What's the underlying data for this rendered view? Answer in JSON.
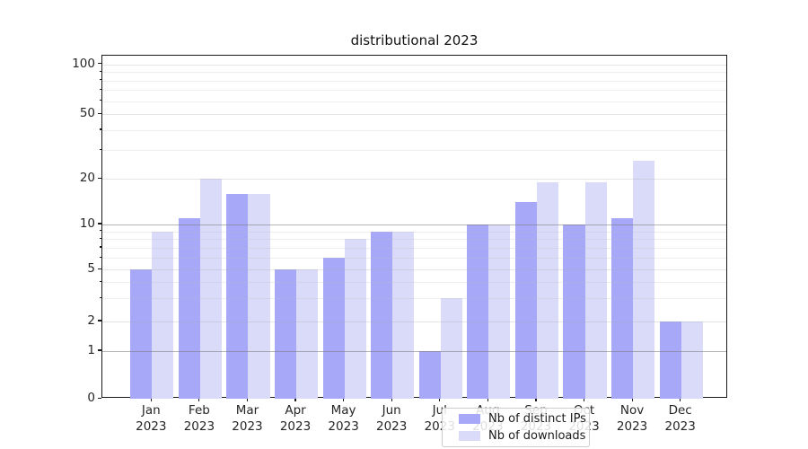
{
  "title": "distributional 2023",
  "chart_data": {
    "type": "bar",
    "title": "distributional 2023",
    "categories": [
      "Jan 2023",
      "Feb 2023",
      "Mar 2023",
      "Apr 2023",
      "May 2023",
      "Jun 2023",
      "Jul 2023",
      "Aug 2023",
      "Sep 2023",
      "Oct 2023",
      "Nov 2023",
      "Dec 2023"
    ],
    "series": [
      {
        "name": "Nb of distinct IPs",
        "color": "#a8a8f8",
        "values": [
          5,
          11,
          16,
          5,
          6,
          9,
          1,
          10,
          14,
          10,
          11,
          2
        ]
      },
      {
        "name": "Nb of downloads",
        "color": "#dadaf9",
        "values": [
          9,
          20,
          16,
          5,
          8,
          9,
          3,
          10,
          19,
          19,
          26,
          2
        ]
      }
    ],
    "xlabel": "",
    "ylabel": "",
    "yscale": "log above 1, linear 0-1 (symlog-like)",
    "y_tick_values": [
      100,
      50,
      20,
      10,
      5,
      2,
      1,
      0
    ],
    "y_minor_grid_values": [
      3,
      4,
      6,
      7,
      8,
      9,
      30,
      40,
      60,
      70,
      80,
      90
    ],
    "ylim": [
      0,
      113
    ],
    "grid": "horizontal major + minor",
    "legend_position": "lower center"
  },
  "colors": {
    "bar_dark": "#a8a8f8",
    "bar_light": "#dadaf9",
    "major_grid": "#b3b3b3",
    "minor_grid": "#ececec",
    "spine": "#1a1a1a",
    "text": "#1a1a1a"
  }
}
